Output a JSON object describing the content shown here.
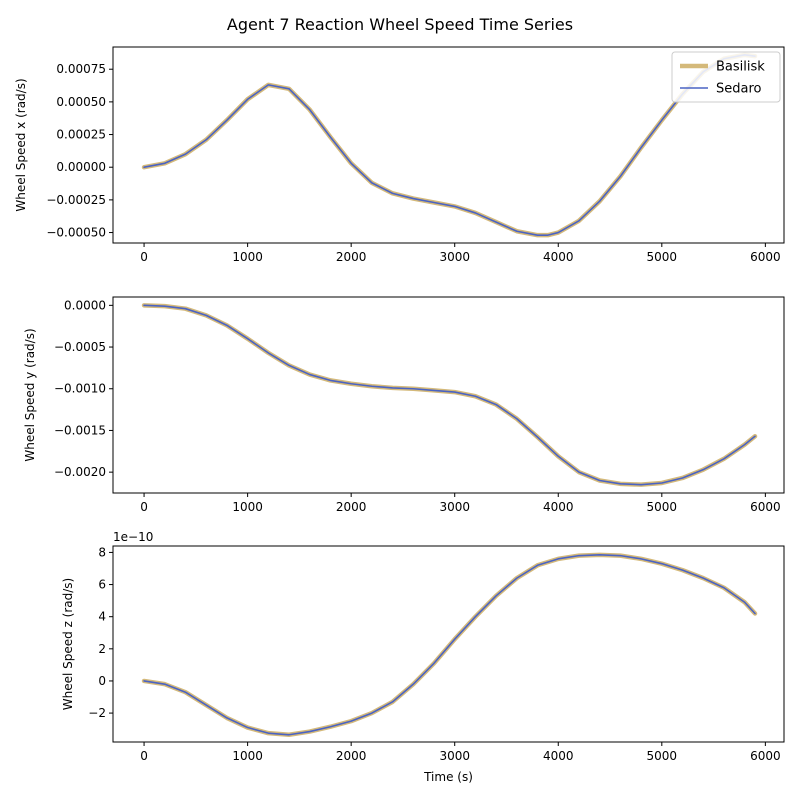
{
  "figure": {
    "title": "Agent 7 Reaction Wheel Speed Time Series"
  },
  "legend": {
    "placement": "top-right",
    "entries": [
      {
        "name": "Basilisk",
        "color": "#d4b97a"
      },
      {
        "name": "Sedaro",
        "color": "#4a63c4"
      }
    ]
  },
  "chart_data": [
    {
      "type": "line",
      "title": "",
      "xlabel": "",
      "ylabel": "Wheel Speed x (rad/s)",
      "xlim": [
        -300,
        6180
      ],
      "ylim": [
        -0.00058,
        0.00092
      ],
      "xticks": [
        0,
        1000,
        2000,
        3000,
        4000,
        5000,
        6000
      ],
      "xtick_labels": [
        "0",
        "1000",
        "2000",
        "3000",
        "4000",
        "5000",
        "6000"
      ],
      "yticks": [
        -0.0005,
        -0.00025,
        0,
        0.00025,
        0.0005,
        0.00075
      ],
      "ytick_labels": [
        "−0.00050",
        "−0.00025",
        "0.00000",
        "0.00025",
        "0.00050",
        "0.00075"
      ],
      "offset_label": "",
      "grid": false,
      "x": [
        0,
        200,
        400,
        600,
        800,
        1000,
        1200,
        1400,
        1600,
        1800,
        2000,
        2200,
        2400,
        2600,
        2800,
        3000,
        3200,
        3400,
        3600,
        3800,
        3900,
        4000,
        4200,
        4400,
        4600,
        4800,
        5000,
        5200,
        5400,
        5600,
        5800,
        5900
      ],
      "series": [
        {
          "name": "Basilisk",
          "values": [
            0,
            3e-05,
            0.0001,
            0.00021,
            0.00036,
            0.00052,
            0.00063,
            0.0006,
            0.00044,
            0.00023,
            3e-05,
            -0.00012,
            -0.0002,
            -0.00024,
            -0.00027,
            -0.0003,
            -0.00035,
            -0.00042,
            -0.00049,
            -0.00052,
            -0.00052,
            -0.0005,
            -0.00041,
            -0.00026,
            -7e-05,
            0.00015,
            0.00036,
            0.00056,
            0.00073,
            0.00083,
            0.00086,
            0.00085
          ]
        },
        {
          "name": "Sedaro",
          "values": [
            0,
            3e-05,
            0.0001,
            0.00021,
            0.00036,
            0.00052,
            0.00063,
            0.0006,
            0.00044,
            0.00023,
            3e-05,
            -0.00012,
            -0.0002,
            -0.00024,
            -0.00027,
            -0.0003,
            -0.00035,
            -0.00042,
            -0.00049,
            -0.00052,
            -0.00052,
            -0.0005,
            -0.00041,
            -0.00026,
            -7e-05,
            0.00015,
            0.00036,
            0.00056,
            0.00073,
            0.00083,
            0.00086,
            0.00085
          ]
        }
      ]
    },
    {
      "type": "line",
      "title": "",
      "xlabel": "",
      "ylabel": "Wheel Speed y (rad/s)",
      "xlim": [
        -300,
        6180
      ],
      "ylim": [
        -0.00225,
        0.0001
      ],
      "xticks": [
        0,
        1000,
        2000,
        3000,
        4000,
        5000,
        6000
      ],
      "xtick_labels": [
        "0",
        "1000",
        "2000",
        "3000",
        "4000",
        "5000",
        "6000"
      ],
      "yticks": [
        -0.002,
        -0.0015,
        -0.001,
        -0.0005,
        0
      ],
      "ytick_labels": [
        "−0.0020",
        "−0.0015",
        "−0.0010",
        "−0.0005",
        "0.0000"
      ],
      "offset_label": "",
      "grid": false,
      "x": [
        0,
        200,
        400,
        600,
        800,
        1000,
        1200,
        1400,
        1600,
        1800,
        2000,
        2200,
        2400,
        2600,
        2800,
        3000,
        3200,
        3400,
        3600,
        3800,
        4000,
        4200,
        4400,
        4600,
        4800,
        5000,
        5200,
        5400,
        5600,
        5800,
        5900
      ],
      "series": [
        {
          "name": "Basilisk",
          "values": [
            0,
            -1e-05,
            -4e-05,
            -0.00012,
            -0.00024,
            -0.0004,
            -0.00057,
            -0.00072,
            -0.00083,
            -0.0009,
            -0.00094,
            -0.00097,
            -0.00099,
            -0.001,
            -0.00102,
            -0.00104,
            -0.00109,
            -0.00119,
            -0.00136,
            -0.00158,
            -0.00181,
            -0.002,
            -0.0021,
            -0.00214,
            -0.00215,
            -0.00213,
            -0.00207,
            -0.00197,
            -0.00184,
            -0.00167,
            -0.00157
          ]
        },
        {
          "name": "Sedaro",
          "values": [
            0,
            -1e-05,
            -4e-05,
            -0.00012,
            -0.00024,
            -0.0004,
            -0.00057,
            -0.00072,
            -0.00083,
            -0.0009,
            -0.00094,
            -0.00097,
            -0.00099,
            -0.001,
            -0.00102,
            -0.00104,
            -0.00109,
            -0.00119,
            -0.00136,
            -0.00158,
            -0.00181,
            -0.002,
            -0.0021,
            -0.00214,
            -0.00215,
            -0.00213,
            -0.00207,
            -0.00197,
            -0.00184,
            -0.00167,
            -0.00157
          ]
        }
      ]
    },
    {
      "type": "line",
      "title": "",
      "xlabel": "Time (s)",
      "ylabel": "Wheel Speed z (rad/s)",
      "xlim": [
        -300,
        6180
      ],
      "ylim": [
        -3.8e-10,
        8.4e-10
      ],
      "xticks": [
        0,
        1000,
        2000,
        3000,
        4000,
        5000,
        6000
      ],
      "xtick_labels": [
        "0",
        "1000",
        "2000",
        "3000",
        "4000",
        "5000",
        "6000"
      ],
      "yticks": [
        -2e-10,
        0,
        2e-10,
        4e-10,
        6e-10,
        8e-10
      ],
      "ytick_labels": [
        "−2",
        "0",
        "2",
        "4",
        "6",
        "8"
      ],
      "offset_label": "1e−10",
      "grid": false,
      "x": [
        0,
        200,
        400,
        600,
        800,
        1000,
        1200,
        1400,
        1600,
        1800,
        2000,
        2200,
        2400,
        2600,
        2800,
        3000,
        3200,
        3400,
        3600,
        3800,
        4000,
        4200,
        4400,
        4600,
        4800,
        5000,
        5200,
        5400,
        5600,
        5800,
        5900
      ],
      "series": [
        {
          "name": "Basilisk",
          "values": [
            0,
            -2e-11,
            -7e-11,
            -1.5e-10,
            -2.3e-10,
            -2.9e-10,
            -3.25e-10,
            -3.35e-10,
            -3.15e-10,
            -2.85e-10,
            -2.5e-10,
            -2e-10,
            -1.3e-10,
            -2e-11,
            1.1e-10,
            2.6e-10,
            4e-10,
            5.3e-10,
            6.4e-10,
            7.2e-10,
            7.6e-10,
            7.8e-10,
            7.85e-10,
            7.8e-10,
            7.6e-10,
            7.3e-10,
            6.9e-10,
            6.4e-10,
            5.8e-10,
            4.9e-10,
            4.2e-10
          ]
        },
        {
          "name": "Sedaro",
          "values": [
            0,
            -2e-11,
            -7e-11,
            -1.5e-10,
            -2.3e-10,
            -2.9e-10,
            -3.25e-10,
            -3.35e-10,
            -3.15e-10,
            -2.85e-10,
            -2.5e-10,
            -2e-10,
            -1.3e-10,
            -2e-11,
            1.1e-10,
            2.6e-10,
            4e-10,
            5.3e-10,
            6.4e-10,
            7.2e-10,
            7.6e-10,
            7.8e-10,
            7.85e-10,
            7.8e-10,
            7.6e-10,
            7.3e-10,
            6.9e-10,
            6.4e-10,
            5.8e-10,
            4.9e-10,
            4.2e-10
          ]
        }
      ]
    }
  ]
}
